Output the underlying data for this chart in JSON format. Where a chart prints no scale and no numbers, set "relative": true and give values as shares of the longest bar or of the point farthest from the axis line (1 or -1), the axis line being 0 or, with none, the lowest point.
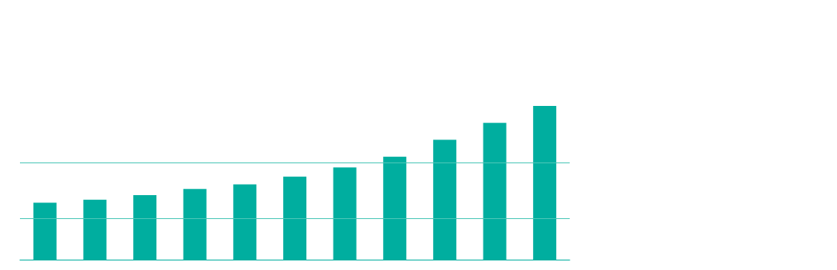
{
  "chart_data": {
    "type": "bar",
    "relative": true,
    "categories": [
      null,
      null,
      null,
      null,
      null,
      null,
      null,
      null,
      null,
      null,
      null
    ],
    "values": [
      0.37,
      0.39,
      0.42,
      0.46,
      0.49,
      0.54,
      0.6,
      0.67,
      0.78,
      0.89,
      1
    ],
    "color": "#00ae9f",
    "ref_lines": [
      {
        "axis": "y",
        "value": 0.27,
        "color": "#4cc7b8"
      },
      {
        "axis": "y",
        "value": 0.63,
        "color": "#4cc7b8"
      }
    ]
  }
}
